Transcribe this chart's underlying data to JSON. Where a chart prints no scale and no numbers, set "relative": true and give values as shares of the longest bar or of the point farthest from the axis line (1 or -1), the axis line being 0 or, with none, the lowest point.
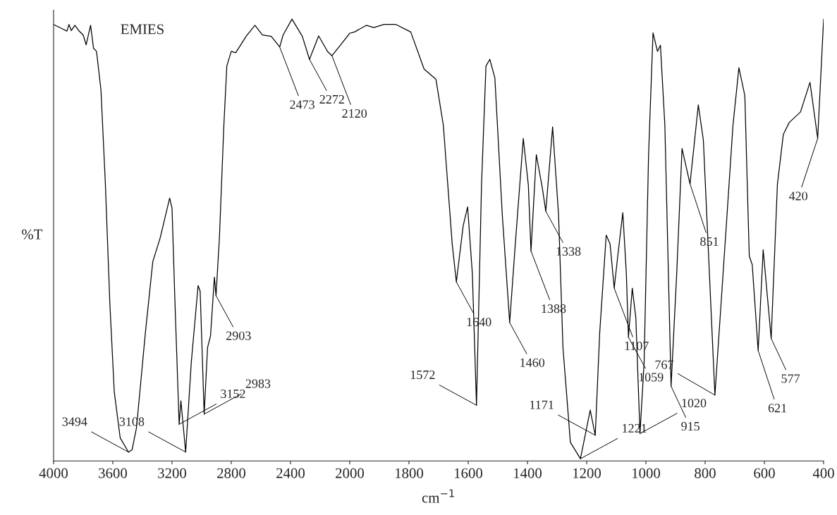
{
  "chart_data": [
    {
      "type": "line",
      "title": "EMIES",
      "xlabel": "cm$^{−1}$",
      "ylabel": "%T",
      "relative": true,
      "grid": false,
      "xlim": [
        4000,
        2000
      ],
      "xticks": [
        4000,
        3600,
        3200,
        2800,
        2400,
        2000
      ],
      "series": [
        {
          "color": "#000000",
          "x": [
            4000,
            3940,
            3910,
            3896,
            3880,
            3856,
            3830,
            3800,
            3780,
            3750,
            3730,
            3710,
            3680,
            3650,
            3620,
            3590,
            3550,
            3494,
            3470,
            3440,
            3380,
            3330,
            3280,
            3216,
            3200,
            3180,
            3152,
            3140,
            3108,
            3070,
            3024,
            3010,
            2983,
            2960,
            2940,
            2914,
            2903,
            2880,
            2850,
            2830,
            2800,
            2770,
            2700,
            2640,
            2590,
            2530,
            2473,
            2450,
            2390,
            2320,
            2272,
            2210,
            2150,
            2120,
            2049,
            2000
          ],
          "values": [
            0.988,
            0.978,
            0.973,
            0.988,
            0.974,
            0.986,
            0.974,
            0.964,
            0.942,
            0.986,
            0.934,
            0.927,
            0.84,
            0.626,
            0.357,
            0.156,
            0.052,
            0.02,
            0.025,
            0.075,
            0.29,
            0.451,
            0.505,
            0.595,
            0.572,
            0.357,
            0.083,
            0.136,
            0.02,
            0.223,
            0.397,
            0.384,
            0.106,
            0.257,
            0.283,
            0.416,
            0.374,
            0.505,
            0.76,
            0.894,
            0.927,
            0.924,
            0.961,
            0.986,
            0.964,
            0.961,
            0.937,
            0.964,
            1.0,
            0.961,
            0.909,
            0.962,
            0.927,
            0.917,
            0.947,
            0.968
          ]
        }
      ],
      "annotations": [
        {
          "text": "3494",
          "x": 3494,
          "y": 0.02
        },
        {
          "text": "3152",
          "x": 3152,
          "y": 0.083
        },
        {
          "text": "3108",
          "x": 3108,
          "y": 0.02
        },
        {
          "text": "2983",
          "x": 2983,
          "y": 0.106
        },
        {
          "text": "2903",
          "x": 2903,
          "y": 0.374
        },
        {
          "text": "2473",
          "x": 2473,
          "y": 0.937
        },
        {
          "text": "2272",
          "x": 2272,
          "y": 0.909
        },
        {
          "text": "2120",
          "x": 2120,
          "y": 0.917
        }
      ]
    },
    {
      "type": "line",
      "relative": true,
      "grid": false,
      "xlim": [
        2000,
        400
      ],
      "xticks": [
        1800,
        1600,
        1400,
        1200,
        1000,
        800,
        600,
        400
      ],
      "series": [
        {
          "color": "#000000",
          "x": [
            2000,
            1984,
            1944,
            1919,
            1884,
            1844,
            1794,
            1749,
            1709,
            1684,
            1654,
            1640,
            1617,
            1602,
            1586,
            1572,
            1555,
            1540,
            1527,
            1510,
            1485,
            1460,
            1441,
            1414,
            1397,
            1388,
            1370,
            1350,
            1338,
            1315,
            1295,
            1280,
            1255,
            1221,
            1188,
            1171,
            1156,
            1134,
            1121,
            1107,
            1096,
            1078,
            1066,
            1059,
            1046,
            1034,
            1020,
            1006,
            991,
            976,
            961,
            951,
            936,
            915,
            896,
            878,
            851,
            823,
            806,
            767,
            726,
            706,
            686,
            666,
            651,
            641,
            621,
            604,
            577,
            556,
            536,
            516,
            478,
            446,
            420,
            400
          ],
          "values": [
            0.968,
            0.971,
            0.986,
            0.981,
            0.988,
            0.988,
            0.971,
            0.887,
            0.864,
            0.76,
            0.491,
            0.405,
            0.532,
            0.575,
            0.424,
            0.126,
            0.626,
            0.894,
            0.909,
            0.867,
            0.558,
            0.313,
            0.491,
            0.73,
            0.625,
            0.475,
            0.693,
            0.619,
            0.565,
            0.756,
            0.558,
            0.256,
            0.042,
            0.005,
            0.115,
            0.058,
            0.29,
            0.511,
            0.491,
            0.391,
            0.458,
            0.562,
            0.424,
            0.28,
            0.391,
            0.324,
            0.062,
            0.223,
            0.693,
            0.969,
            0.927,
            0.941,
            0.76,
            0.169,
            0.424,
            0.707,
            0.627,
            0.806,
            0.726,
            0.149,
            0.558,
            0.76,
            0.89,
            0.827,
            0.464,
            0.444,
            0.25,
            0.478,
            0.277,
            0.626,
            0.739,
            0.766,
            0.79,
            0.857,
            0.73,
            1.0
          ]
        }
      ],
      "annotations": [
        {
          "text": "1640",
          "x": 1640,
          "y": 0.405
        },
        {
          "text": "1572",
          "x": 1572,
          "y": 0.126
        },
        {
          "text": "1460",
          "x": 1460,
          "y": 0.313
        },
        {
          "text": "1388",
          "x": 1388,
          "y": 0.475
        },
        {
          "text": "1338",
          "x": 1338,
          "y": 0.565
        },
        {
          "text": "1221",
          "x": 1221,
          "y": 0.005
        },
        {
          "text": "1171",
          "x": 1171,
          "y": 0.058
        },
        {
          "text": "1107",
          "x": 1107,
          "y": 0.391
        },
        {
          "text": "1059",
          "x": 1059,
          "y": 0.28
        },
        {
          "text": "1020",
          "x": 1020,
          "y": 0.062
        },
        {
          "text": "915",
          "x": 915,
          "y": 0.169
        },
        {
          "text": "851",
          "x": 851,
          "y": 0.627
        },
        {
          "text": "767",
          "x": 767,
          "y": 0.149
        },
        {
          "text": "621",
          "x": 621,
          "y": 0.25
        },
        {
          "text": "577",
          "x": 577,
          "y": 0.277
        },
        {
          "text": "420",
          "x": 420,
          "y": 0.73
        }
      ]
    }
  ]
}
